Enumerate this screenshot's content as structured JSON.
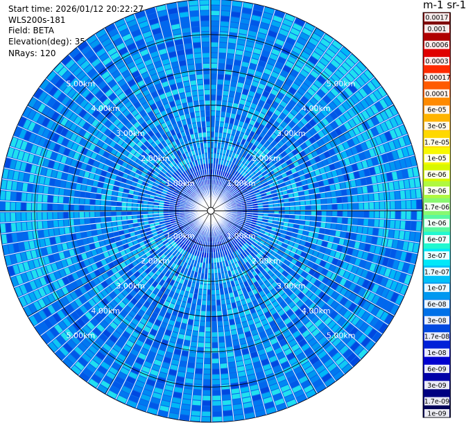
{
  "info": {
    "start_time": "Start time: 2026/01/12 20:22:27",
    "instrument": "WLS200s-181",
    "field": "Field: BETA",
    "elevation": "Elevation(deg): 35.00",
    "nrays": "NRays: 120"
  },
  "colorbar": {
    "unit_title": "m-1 sr-1",
    "colors": [
      "#7f0000",
      "#b00000",
      "#e00000",
      "#ff2a00",
      "#ff5a00",
      "#ff8a00",
      "#ffb400",
      "#ffd800",
      "#f8f800",
      "#d8f800",
      "#b0f840",
      "#88f870",
      "#58f8a0",
      "#20f8d0",
      "#00e8f8",
      "#00c0f8",
      "#0098f0",
      "#0070e8",
      "#0048e0",
      "#0020d8",
      "#0000d0",
      "#0000a8",
      "#000080",
      "#000058"
    ],
    "labels": [
      "0.0017",
      "0.001",
      "0.0006",
      "0.0003",
      "0.00017",
      "0.0001",
      "6e-05",
      "3e-05",
      "1.7e-05",
      "1e-05",
      "6e-06",
      "3e-06",
      "1.7e-06",
      "1e-06",
      "6e-07",
      "3e-07",
      "1.7e-07",
      "1e-07",
      "6e-08",
      "3e-08",
      "1.7e-08",
      "1e-08",
      "6e-09",
      "3e-09",
      "1.7e-09",
      "1e-09"
    ]
  },
  "chart_data": {
    "type": "heatmap",
    "projection": "polar-ppi",
    "field": "BETA",
    "elevation_deg": 35.0,
    "n_rays": 120,
    "range_rings_km": [
      1,
      2,
      3,
      4,
      5
    ],
    "range_ring_labels": [
      "1.00km",
      "2.00km",
      "3.00km",
      "4.00km",
      "5.00km"
    ],
    "max_range_km": 6.0,
    "spoke_step_deg": 30,
    "dominant_value_range": [
      1e-08,
      1e-07
    ],
    "near_range_value_range": [
      6e-09,
      3e-08
    ],
    "color_scale": "log"
  }
}
